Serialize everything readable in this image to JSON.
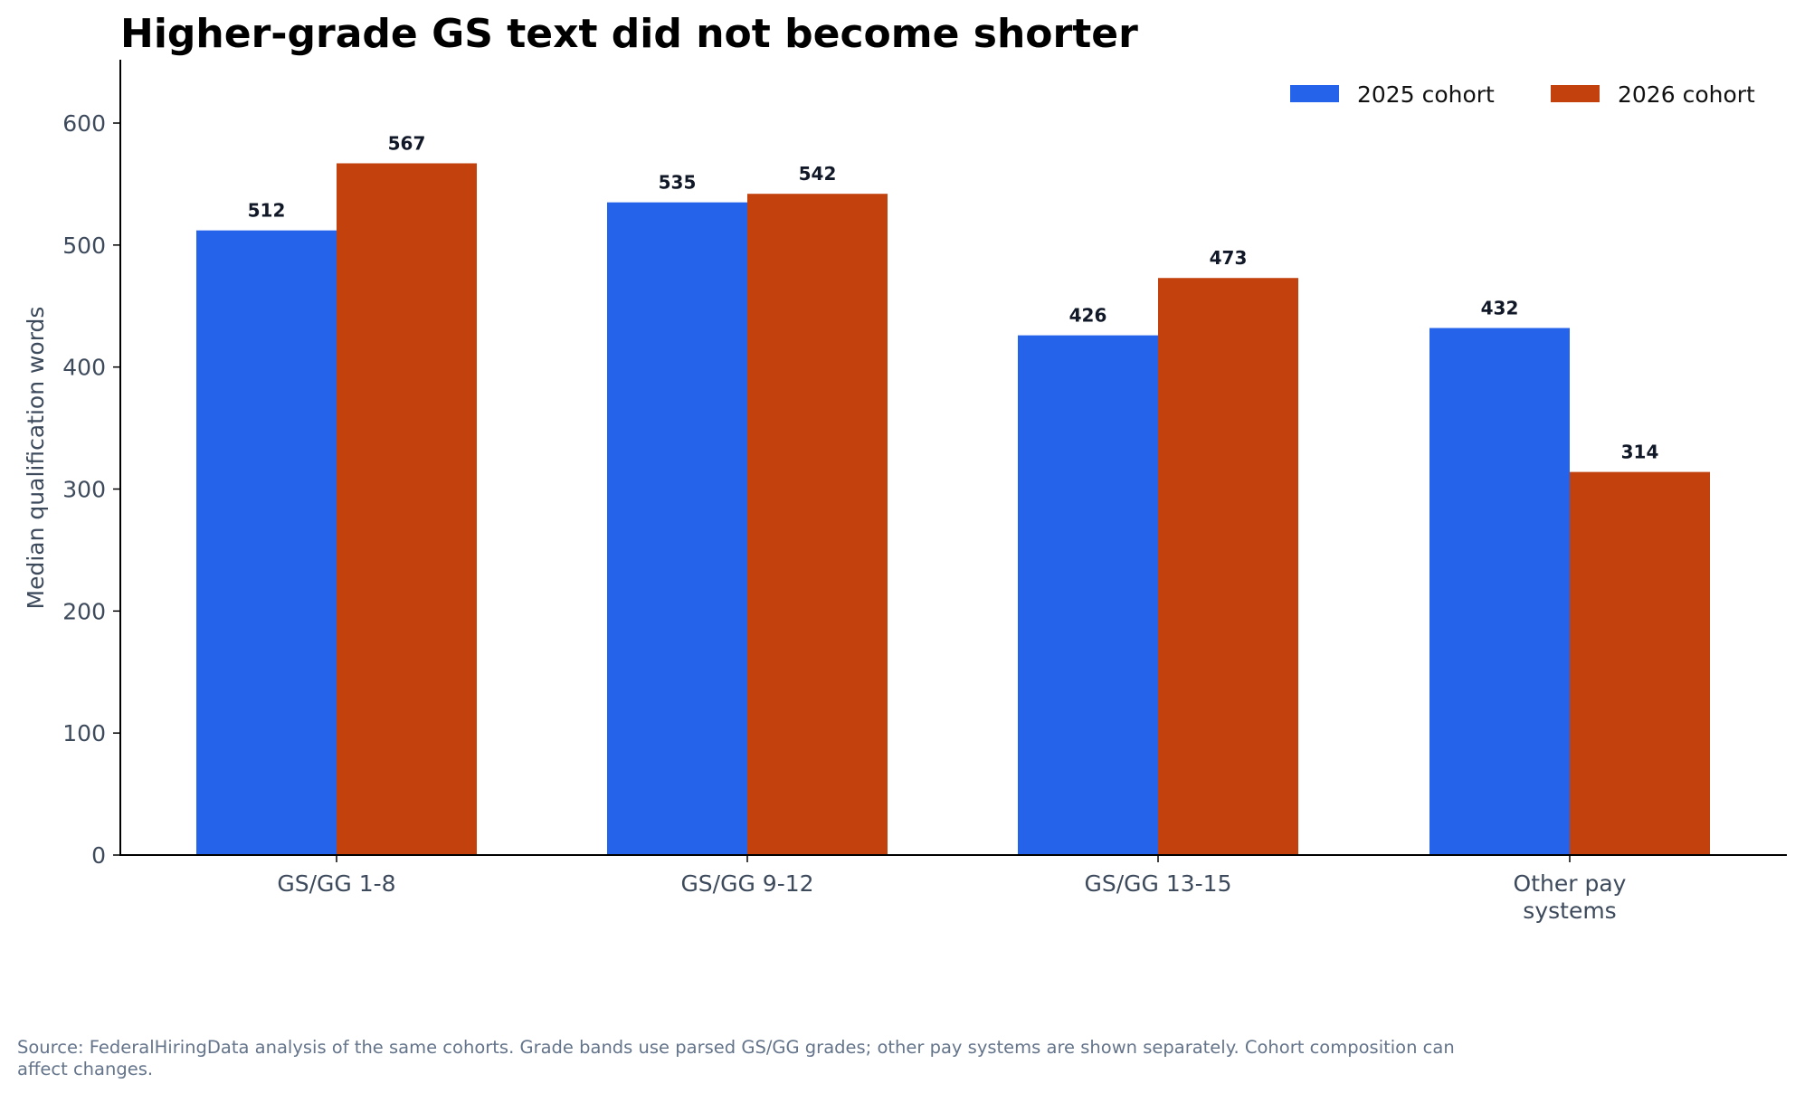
{
  "chart_data": {
    "type": "bar",
    "title": "Higher-grade GS text did not become shorter",
    "ylabel": "Median qualification words",
    "xlabel": "",
    "ylim": [
      0,
      650
    ],
    "yticks": [
      0,
      100,
      200,
      300,
      400,
      500,
      600
    ],
    "categories": [
      [
        "GS/GG 1-8"
      ],
      [
        "GS/GG 9-12"
      ],
      [
        "GS/GG 13-15"
      ],
      [
        "Other pay",
        "systems"
      ]
    ],
    "series": [
      {
        "name": "2025 cohort",
        "color": "#2563eb",
        "values": [
          512,
          535,
          426,
          432
        ]
      },
      {
        "name": "2026 cohort",
        "color": "#c2410c",
        "values": [
          567,
          542,
          473,
          314
        ]
      }
    ],
    "grid": false,
    "legend_position": "top-right"
  },
  "source_note": "Source: FederalHiringData analysis of the same cohorts. Grade bands use parsed GS/GG grades; other pay systems are shown separately. Cohort composition can affect changes."
}
